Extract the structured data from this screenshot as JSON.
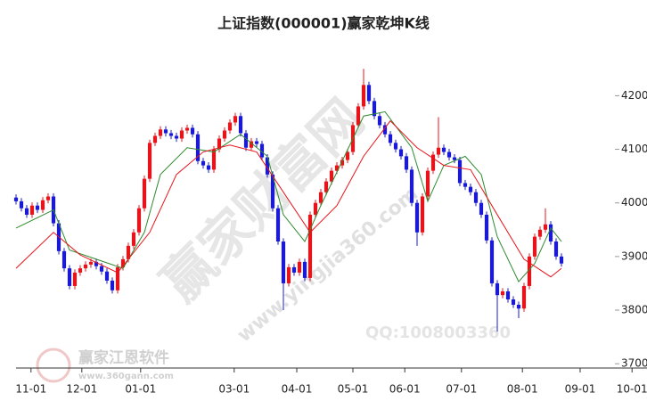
{
  "chart_data": {
    "type": "candlestick",
    "title": "上证指数(000001)赢家乾坤K线",
    "watermarks": [
      "赢家财富网",
      "www.yingjia360.com",
      "QQ:1008003360",
      "赢家江恩软件",
      "www.360gann.com"
    ],
    "up_color": "#e8141b",
    "down_color": "#1a1ad6",
    "x": [
      0,
      1,
      2,
      3,
      4,
      5,
      6,
      7,
      8,
      9,
      10,
      11,
      12,
      13,
      14,
      15,
      16,
      17,
      18,
      19,
      20,
      21,
      22,
      23,
      24,
      25,
      26,
      27,
      28,
      29,
      30,
      31,
      32,
      33,
      34,
      35,
      36,
      37,
      38,
      39,
      40,
      41,
      42,
      43,
      44,
      45,
      46,
      47,
      48,
      49,
      50,
      51,
      52,
      53,
      54,
      55,
      56,
      57,
      58,
      59,
      60,
      61,
      62,
      63,
      64,
      65,
      66,
      67,
      68,
      69,
      70,
      71,
      72,
      73,
      74,
      75,
      76,
      77,
      78,
      79,
      80,
      81,
      82,
      83,
      84,
      85,
      86,
      87,
      88,
      89,
      90,
      91,
      92,
      93,
      94,
      95,
      96,
      97,
      98,
      99,
      100,
      101,
      102
    ],
    "open": [
      4010,
      4003,
      3990,
      3978,
      3995,
      3987,
      4005,
      4012,
      3962,
      3910,
      3878,
      3845,
      3870,
      3878,
      3885,
      3890,
      3882,
      3872,
      3855,
      3837,
      3880,
      3895,
      3920,
      3945,
      3990,
      4045,
      4112,
      4125,
      4137,
      4130,
      4125,
      4120,
      4135,
      4140,
      4128,
      4078,
      4070,
      4062,
      4100,
      4120,
      4135,
      4150,
      4162,
      4130,
      4103,
      4115,
      4110,
      4085,
      4053,
      3990,
      3928,
      3850,
      3880,
      3870,
      3890,
      3860,
      3978,
      4000,
      4020,
      4040,
      4060,
      4070,
      4080,
      4095,
      4145,
      4180,
      4220,
      4190,
      4162,
      4145,
      4128,
      4112,
      4100,
      4087,
      4062,
      4000,
      3945,
      4012,
      4060,
      4090,
      4103,
      4095,
      4085,
      4080,
      4037,
      4030,
      4020,
      4000,
      3978,
      3930,
      3850,
      3828,
      3835,
      3820,
      3810,
      3803,
      3845,
      3900,
      3937,
      3950,
      3960,
      3928,
      3900
    ],
    "high": [
      4016,
      4009,
      3996,
      4001,
      4001,
      4011,
      4018,
      4018,
      3968,
      3916,
      3884,
      3876,
      3884,
      3891,
      3896,
      3896,
      3888,
      3878,
      3861,
      3886,
      3901,
      3926,
      3951,
      3996,
      4051,
      4118,
      4131,
      4143,
      4143,
      4136,
      4131,
      4141,
      4146,
      4146,
      4134,
      4084,
      4076,
      4106,
      4126,
      4141,
      4156,
      4168,
      4168,
      4136,
      4121,
      4121,
      4116,
      4091,
      4059,
      3996,
      3934,
      3886,
      3886,
      3896,
      3896,
      3984,
      4006,
      4026,
      4046,
      4066,
      4076,
      4086,
      4101,
      4151,
      4186,
      4250,
      4226,
      4196,
      4168,
      4151,
      4134,
      4118,
      4106,
      4093,
      4068,
      4006,
      4018,
      4066,
      4096,
      4160,
      4109,
      4101,
      4091,
      4086,
      4043,
      4036,
      4026,
      4006,
      3984,
      3936,
      3856,
      3841,
      3841,
      3826,
      3816,
      3851,
      3906,
      3943,
      3956,
      3990,
      3966,
      3934,
      3906
    ],
    "low": [
      3997,
      3984,
      3972,
      3972,
      3981,
      3981,
      3999,
      3956,
      3904,
      3872,
      3839,
      3839,
      3864,
      3872,
      3879,
      3876,
      3866,
      3849,
      3831,
      3831,
      3874,
      3889,
      3914,
      3939,
      3984,
      4039,
      4106,
      4119,
      4124,
      4119,
      4114,
      4114,
      4129,
      4122,
      4072,
      4064,
      4056,
      4056,
      4094,
      4114,
      4129,
      4144,
      4124,
      4097,
      4097,
      4104,
      4079,
      4047,
      3984,
      3922,
      3800,
      3844,
      3864,
      3864,
      3854,
      3854,
      3972,
      3994,
      4014,
      4034,
      4054,
      4064,
      4074,
      4089,
      4139,
      4174,
      4184,
      4156,
      4139,
      4122,
      4106,
      4094,
      4081,
      4056,
      3994,
      3920,
      3939,
      4006,
      4054,
      4084,
      4089,
      4079,
      4074,
      4031,
      4024,
      4014,
      3994,
      3972,
      3924,
      3844,
      3760,
      3822,
      3814,
      3804,
      3785,
      3797,
      3839,
      3894,
      3931,
      3944,
      3922,
      3894,
      3881
    ],
    "close": [
      4003,
      3990,
      3978,
      3995,
      3987,
      4005,
      4012,
      3962,
      3910,
      3878,
      3845,
      3870,
      3878,
      3885,
      3890,
      3882,
      3872,
      3855,
      3837,
      3880,
      3895,
      3920,
      3945,
      3990,
      4045,
      4112,
      4125,
      4137,
      4130,
      4125,
      4120,
      4135,
      4140,
      4128,
      4078,
      4070,
      4062,
      4100,
      4120,
      4135,
      4150,
      4162,
      4130,
      4103,
      4115,
      4110,
      4085,
      4053,
      3990,
      3928,
      3850,
      3880,
      3870,
      3890,
      3860,
      3978,
      4000,
      4020,
      4040,
      4060,
      4070,
      4080,
      4095,
      4145,
      4180,
      4220,
      4190,
      4162,
      4145,
      4128,
      4112,
      4100,
      4087,
      4062,
      4000,
      3945,
      4012,
      4060,
      4090,
      4103,
      4095,
      4085,
      4080,
      4037,
      4030,
      4020,
      4000,
      3978,
      3930,
      3850,
      3828,
      3835,
      3820,
      3810,
      3803,
      3845,
      3900,
      3937,
      3950,
      3960,
      3928,
      3900,
      3887
    ],
    "series": [
      {
        "color": "#2e8b2e",
        "x": [
          0,
          7,
          10,
          15,
          20,
          24,
          27,
          32,
          37,
          42,
          47,
          50,
          54,
          57,
          61,
          65,
          69,
          74,
          77,
          80,
          84,
          87,
          90,
          94,
          97,
          100,
          102
        ],
        "values": [
          3953,
          3987,
          3912,
          3895,
          3878,
          3945,
          4053,
          4103,
          4095,
          4128,
          4087,
          3978,
          3928,
          3995,
          4078,
          4162,
          4170,
          4103,
          4003,
          4070,
          4087,
          4053,
          3937,
          3853,
          3887,
          3953,
          3928
        ]
      },
      {
        "color": "#e8141b",
        "x": [
          0,
          7,
          12,
          19,
          25,
          30,
          35,
          40,
          45,
          50,
          55,
          60,
          65,
          70,
          75,
          80,
          85,
          90,
          95,
          100,
          102
        ],
        "values": [
          3878,
          3945,
          3903,
          3870,
          3945,
          4053,
          4095,
          4108,
          4095,
          4020,
          3945,
          3995,
          4087,
          4153,
          4103,
          4070,
          4062,
          3978,
          3895,
          3862,
          3878
        ]
      }
    ],
    "xlim": [
      0,
      118
    ],
    "ylim": [
      3692,
      4312
    ],
    "xticks": [
      {
        "value": 2.8,
        "label": "11-01"
      },
      {
        "value": 12.3,
        "label": "12-01"
      },
      {
        "value": 23.3,
        "label": "01-01"
      },
      {
        "value": 40.8,
        "label": "03-01"
      },
      {
        "value": 52.5,
        "label": "04-01"
      },
      {
        "value": 63,
        "label": "05-01"
      },
      {
        "value": 72.7,
        "label": "06-01"
      },
      {
        "value": 83.3,
        "label": "07-01"
      },
      {
        "value": 94.7,
        "label": "08-01"
      },
      {
        "value": 105.5,
        "label": "09-01"
      },
      {
        "value": 115.2,
        "label": "10-01"
      }
    ],
    "yticks": [
      3700,
      3800,
      3900,
      4000,
      4100,
      4200
    ]
  }
}
